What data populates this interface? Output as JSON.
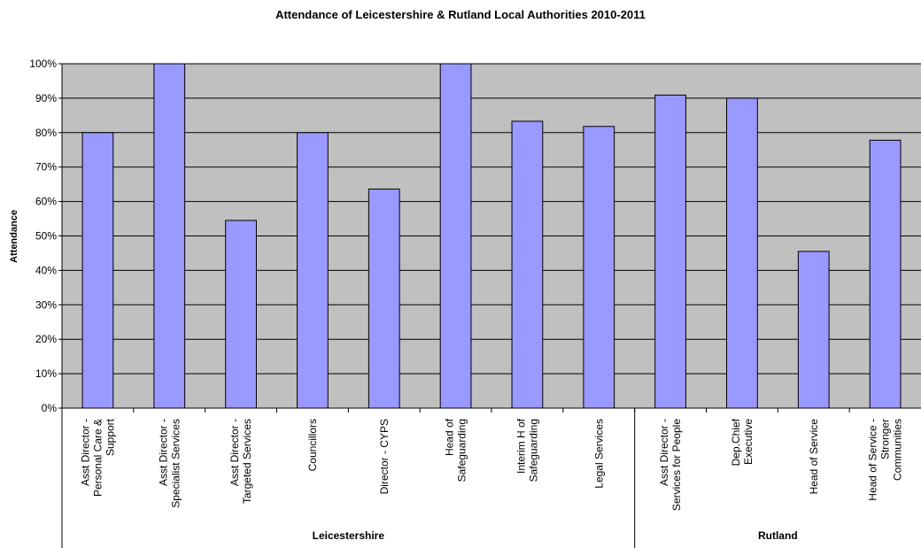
{
  "chart_data": {
    "type": "bar",
    "title": "Attendance of Leicestershire & Rutland Local Authorities 2010-2011",
    "ylabel": "Attendance",
    "xlabel": "",
    "ylim": [
      0,
      100
    ],
    "y_ticks": [
      "0%",
      "10%",
      "20%",
      "30%",
      "40%",
      "50%",
      "60%",
      "70%",
      "80%",
      "90%",
      "100%"
    ],
    "grid": true,
    "categories": [
      [
        "Asst Director -",
        "Personal Care &",
        "Support"
      ],
      [
        "Asst Director -",
        "Specialist Services"
      ],
      [
        "Asst Director -",
        "Targeted Services"
      ],
      [
        "Councillors"
      ],
      [
        "Director - CYPS"
      ],
      [
        "Head of",
        "Safeguarding"
      ],
      [
        "Interim H of",
        "Safeguarding"
      ],
      [
        "Legal Services"
      ],
      [
        "Asst Director -",
        "Services for People"
      ],
      [
        "Dep.Chief",
        "Executive"
      ],
      [
        "Head of Service"
      ],
      [
        "Head of Service -",
        "Stronger",
        "Communities"
      ]
    ],
    "values": [
      80,
      100,
      54.5,
      80,
      63.6,
      100,
      83.3,
      81.8,
      90.9,
      90,
      45.5,
      77.8
    ],
    "groups": [
      {
        "label": "Leicestershire",
        "count": 8
      },
      {
        "label": "Rutland",
        "count": 4
      }
    ],
    "colors": {
      "bar": "#9999ff",
      "plot_bg": "#c0c0c0",
      "grid": "#000000"
    }
  }
}
